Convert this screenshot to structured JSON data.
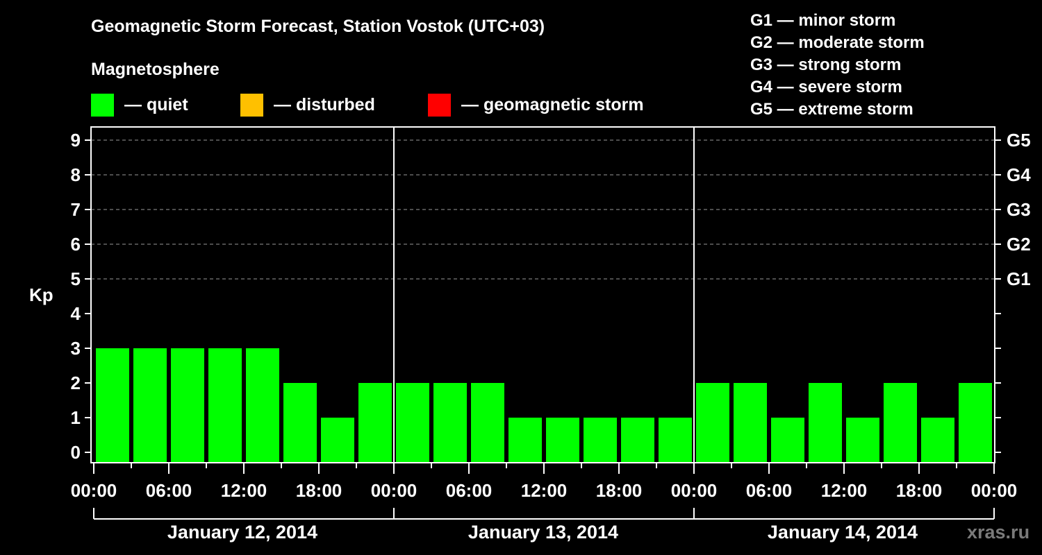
{
  "header": {
    "title": "Geomagnetic Storm Forecast, Station Vostok (UTC+03)",
    "subtitle": "Magnetosphere"
  },
  "legend": [
    {
      "label": "— quiet",
      "color": "#00ff00"
    },
    {
      "label": "— disturbed",
      "color": "#ffc000"
    },
    {
      "label": "— geomagnetic storm",
      "color": "#ff0000"
    }
  ],
  "storm_scale": [
    "G1 — minor storm",
    "G2 — moderate storm",
    "G3 — strong storm",
    "G4 — severe storm",
    "G5 — extreme storm"
  ],
  "watermark": "xras.ru",
  "chart_data": {
    "type": "bar",
    "title": "Geomagnetic Storm Forecast, Station Vostok (UTC+03)",
    "subtitle": "Magnetosphere",
    "xlabel": "",
    "ylabel": "Kp",
    "ylim": [
      0,
      9
    ],
    "yticks": [
      0,
      1,
      2,
      3,
      4,
      5,
      6,
      7,
      8,
      9
    ],
    "right_axis": {
      "labels": [
        "G1",
        "G2",
        "G3",
        "G4",
        "G5"
      ],
      "kp_values": [
        5,
        6,
        7,
        8,
        9
      ]
    },
    "grid": {
      "horizontal_dashed_at": [
        5,
        6,
        7,
        8,
        9
      ]
    },
    "x_tick_labels": [
      "00:00",
      "06:00",
      "12:00",
      "18:00",
      "00:00",
      "06:00",
      "12:00",
      "18:00",
      "00:00",
      "06:00",
      "12:00",
      "18:00",
      "00:00"
    ],
    "days": [
      "January 12, 2014",
      "January 13, 2014",
      "January 14, 2014"
    ],
    "categories": [
      "Jan 12 00-03",
      "Jan 12 03-06",
      "Jan 12 06-09",
      "Jan 12 09-12",
      "Jan 12 12-15",
      "Jan 12 15-18",
      "Jan 12 18-21",
      "Jan 12 21-24",
      "Jan 13 00-03",
      "Jan 13 03-06",
      "Jan 13 06-09",
      "Jan 13 09-12",
      "Jan 13 12-15",
      "Jan 13 15-18",
      "Jan 13 18-21",
      "Jan 13 21-24",
      "Jan 14 00-03",
      "Jan 14 03-06",
      "Jan 14 06-09",
      "Jan 14 09-12",
      "Jan 14 12-15",
      "Jan 14 15-18",
      "Jan 14 18-21",
      "Jan 14 21-24"
    ],
    "values": [
      3,
      3,
      3,
      3,
      3,
      2,
      1,
      2,
      2,
      2,
      2,
      1,
      1,
      1,
      1,
      1,
      2,
      2,
      1,
      2,
      1,
      2,
      1,
      2
    ],
    "bar_status": "quiet",
    "colors": {
      "quiet": "#00ff00",
      "disturbed": "#ffc000",
      "storm": "#ff0000",
      "background": "#000000",
      "axis": "#ffffff",
      "grid": "#9a9a9a"
    },
    "legend": [
      "quiet",
      "disturbed",
      "geomagnetic storm"
    ]
  }
}
